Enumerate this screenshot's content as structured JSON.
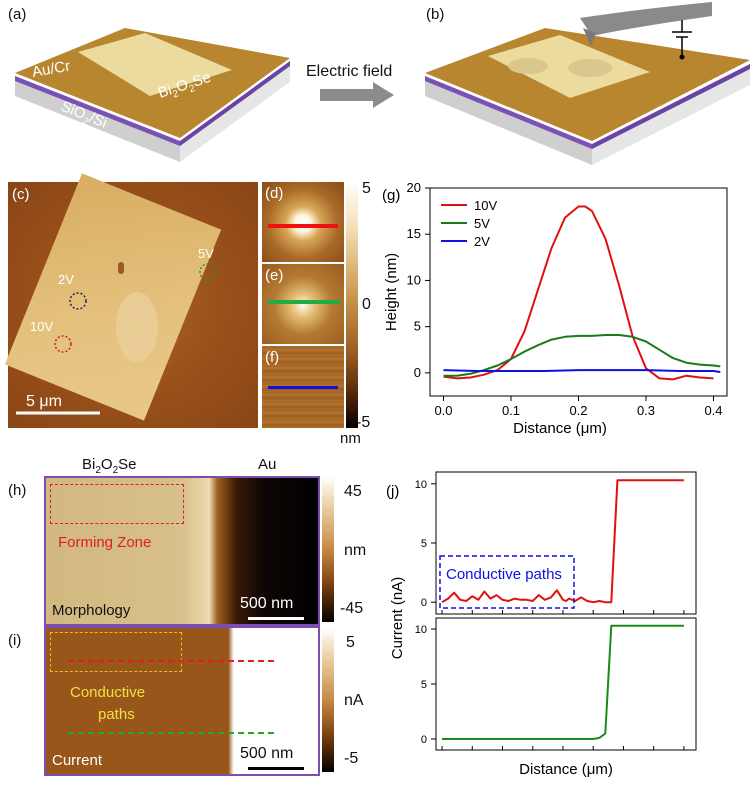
{
  "panel_labels": {
    "a": "(a)",
    "b": "(b)",
    "c": "(c)",
    "d": "(d)",
    "e": "(e)",
    "f": "(f)",
    "g": "(g)",
    "h": "(h)",
    "i": "(i)",
    "j": "(j)"
  },
  "schematic": {
    "electrode_label": "Au/Cr",
    "flake_label_main": "Bi",
    "flake_sub1": "2",
    "flake_mid": "O",
    "flake_sub2": "2",
    "flake_end": "Se",
    "substrate_main": "SiO",
    "substrate_sub": "2",
    "substrate_end": "/Si",
    "arrow_label": "Electric field",
    "colors": {
      "electrode": "#b8862f",
      "flake": "#efe3a8",
      "purple": "#7b52b4",
      "substrate": "#d2d2d2"
    }
  },
  "afm_c": {
    "markers": [
      {
        "label": "2V",
        "color": "#222266"
      },
      {
        "label": "5V",
        "color": "#2c8a2c"
      },
      {
        "label": "10V",
        "color": "#d02020"
      }
    ],
    "scale_bar": "5 μm"
  },
  "colorbar_top": {
    "max": "5",
    "mid": "0",
    "min": "-5",
    "unit": "nm"
  },
  "line_colors": {
    "d": "#ee1111",
    "e": "#22aa44",
    "f": "#1111dd"
  },
  "chart_data": [
    {
      "type": "line",
      "title": "",
      "xlabel": "Distance (μm)",
      "ylabel": "Height (nm)",
      "xlim": [
        -0.02,
        0.42
      ],
      "ylim": [
        -2.5,
        20
      ],
      "xticks": [
        "0.0",
        "0.1",
        "0.2",
        "0.3",
        "0.4"
      ],
      "yticks": [
        "0",
        "5",
        "10",
        "15",
        "20"
      ],
      "legend_position": "top-left",
      "series": [
        {
          "name": "10V",
          "color": "#e01010",
          "x": [
            0,
            0.02,
            0.04,
            0.06,
            0.08,
            0.1,
            0.12,
            0.14,
            0.16,
            0.18,
            0.2,
            0.21,
            0.22,
            0.24,
            0.26,
            0.28,
            0.3,
            0.32,
            0.34,
            0.36,
            0.38,
            0.4
          ],
          "y": [
            -0.4,
            -0.6,
            -0.5,
            -0.2,
            0.3,
            1.5,
            4.5,
            9.0,
            13.5,
            16.8,
            18.0,
            18.0,
            17.5,
            14.5,
            9.5,
            4.0,
            0.5,
            -0.6,
            -0.7,
            -0.3,
            -0.5,
            -0.6
          ]
        },
        {
          "name": "5V",
          "color": "#1a7a1a",
          "x": [
            0,
            0.02,
            0.04,
            0.06,
            0.08,
            0.1,
            0.12,
            0.14,
            0.16,
            0.18,
            0.2,
            0.22,
            0.24,
            0.26,
            0.28,
            0.3,
            0.32,
            0.34,
            0.36,
            0.38,
            0.4,
            0.41
          ],
          "y": [
            -0.3,
            -0.3,
            -0.1,
            0.3,
            0.8,
            1.5,
            2.3,
            3.0,
            3.6,
            3.9,
            4.0,
            4.0,
            4.1,
            4.1,
            3.9,
            3.4,
            2.5,
            1.6,
            1.1,
            0.9,
            0.8,
            0.7
          ]
        },
        {
          "name": "2V",
          "color": "#1010e0",
          "x": [
            0,
            0.05,
            0.1,
            0.15,
            0.2,
            0.25,
            0.3,
            0.35,
            0.4,
            0.41
          ],
          "y": [
            0.3,
            0.2,
            0.2,
            0.2,
            0.3,
            0.3,
            0.3,
            0.2,
            0.2,
            0.1
          ]
        }
      ]
    },
    {
      "type": "line",
      "title": "",
      "xlabel": "Distance (μm)",
      "ylabel": "Current (nA)",
      "ylim": [
        -1,
        11
      ],
      "yticks": [
        "0",
        "5",
        "10"
      ],
      "annotation": "Conductive paths",
      "series": [
        {
          "name": "",
          "color": "#e01010",
          "x": [
            0,
            0.2,
            0.4,
            0.6,
            0.8,
            1.0,
            1.2,
            1.4,
            1.6,
            1.8,
            2.0,
            2.2,
            2.4,
            2.6,
            2.8,
            3.0,
            3.2,
            3.4,
            3.6,
            3.8,
            4.0,
            4.1,
            4.2,
            4.4,
            4.6,
            4.8,
            5.0,
            5.2,
            5.4,
            5.6,
            5.8,
            6.0,
            6.4,
            6.8,
            7.2,
            7.6,
            8.0
          ],
          "y": [
            0,
            0.3,
            0.8,
            0.2,
            0.1,
            0.5,
            0.2,
            0.9,
            0.3,
            0.6,
            0.2,
            0.1,
            0.3,
            0.2,
            0.2,
            0.1,
            0.6,
            0.2,
            0.4,
            1.0,
            0.2,
            0.1,
            0.3,
            0.1,
            0.4,
            0.1,
            0,
            0.1,
            0,
            0,
            10.3,
            10.3,
            10.3,
            10.3,
            10.3,
            10.3,
            10.3
          ]
        },
        {
          "name": "",
          "color": "#1a8a1a",
          "x": [
            0,
            1,
            2,
            3,
            4,
            5,
            5.2,
            5.4,
            5.6,
            6.0,
            7.0,
            8.0
          ],
          "y": [
            0,
            0,
            0,
            0,
            0,
            0,
            0.1,
            0.5,
            10.3,
            10.3,
            10.3,
            10.3
          ]
        }
      ]
    }
  ],
  "panel_h": {
    "top_left": "Bi",
    "top_left_sub1": "2",
    "top_left_mid": "O",
    "top_left_sub2": "2",
    "top_left_end": "Se",
    "top_right": "Au",
    "zone_label": "Forming Zone",
    "corner_label": "Morphology",
    "scale_bar": "500 nm"
  },
  "colorbar_h": {
    "max": "45",
    "unit": "nm",
    "min": "-45"
  },
  "panel_i": {
    "label1": "Conductive",
    "label2": "paths",
    "corner_label": "Current",
    "scale_bar": "500 nm"
  },
  "colorbar_i": {
    "max": "5",
    "unit": "nA",
    "min": "-5"
  }
}
